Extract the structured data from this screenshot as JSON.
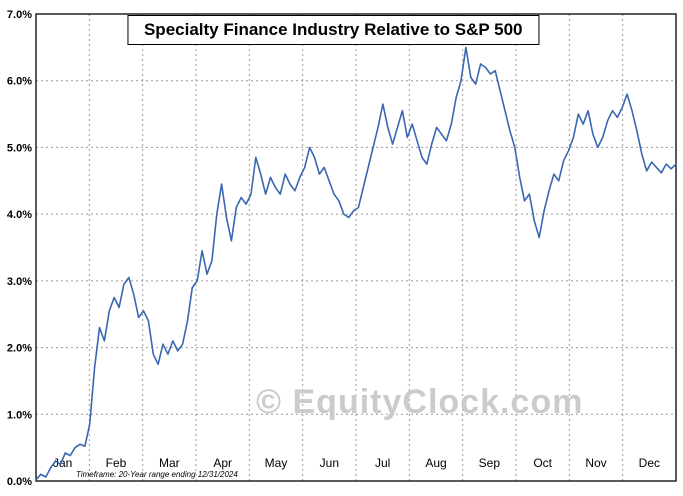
{
  "page": {
    "title": "Specialty Finance Industry Relative to S&P 500",
    "watermark": "© EquityClock.com",
    "footnote": "Timeframe: 20-Year range ending 12/31/2024"
  },
  "chart_data": {
    "type": "line",
    "title": "Specialty Finance Industry Relative to S&P 500",
    "xlabel": "",
    "ylabel": "",
    "ylim": [
      0,
      7
    ],
    "ytick_labels": [
      "0.0%",
      "1.0%",
      "2.0%",
      "3.0%",
      "4.0%",
      "5.0%",
      "6.0%",
      "7.0%"
    ],
    "x_months": [
      "Jan",
      "Feb",
      "Mar",
      "Apr",
      "May",
      "Jun",
      "Jul",
      "Aug",
      "Sep",
      "Oct",
      "Nov",
      "Dec"
    ],
    "grid": "dashed",
    "legend": "none",
    "line_color": "#3a67b1",
    "series": [
      {
        "name": "Specialty Finance Industry Relative to S&P 500 (%)",
        "values": [
          0.02,
          0.1,
          0.06,
          0.2,
          0.3,
          0.25,
          0.42,
          0.38,
          0.5,
          0.55,
          0.52,
          0.85,
          1.7,
          2.3,
          2.1,
          2.55,
          2.75,
          2.6,
          2.95,
          3.05,
          2.8,
          2.45,
          2.55,
          2.4,
          1.9,
          1.75,
          2.05,
          1.9,
          2.1,
          1.95,
          2.05,
          2.4,
          2.9,
          3.0,
          3.45,
          3.1,
          3.3,
          4.0,
          4.45,
          3.95,
          3.6,
          4.1,
          4.25,
          4.15,
          4.3,
          4.85,
          4.6,
          4.3,
          4.55,
          4.4,
          4.3,
          4.6,
          4.45,
          4.35,
          4.55,
          4.7,
          5.0,
          4.85,
          4.6,
          4.7,
          4.5,
          4.3,
          4.2,
          4.0,
          3.95,
          4.05,
          4.1,
          4.4,
          4.7,
          5.0,
          5.3,
          5.65,
          5.3,
          5.05,
          5.3,
          5.55,
          5.15,
          5.35,
          5.1,
          4.85,
          4.75,
          5.05,
          5.3,
          5.2,
          5.1,
          5.35,
          5.75,
          6.0,
          6.5,
          6.05,
          5.95,
          6.25,
          6.2,
          6.1,
          6.15,
          5.85,
          5.55,
          5.25,
          5.0,
          4.55,
          4.2,
          4.3,
          3.9,
          3.65,
          4.05,
          4.35,
          4.6,
          4.5,
          4.8,
          4.95,
          5.15,
          5.5,
          5.35,
          5.55,
          5.2,
          5.0,
          5.15,
          5.4,
          5.55,
          5.45,
          5.6,
          5.8,
          5.55,
          5.25,
          4.9,
          4.65,
          4.78,
          4.7,
          4.62,
          4.75,
          4.68,
          4.75
        ]
      }
    ]
  }
}
